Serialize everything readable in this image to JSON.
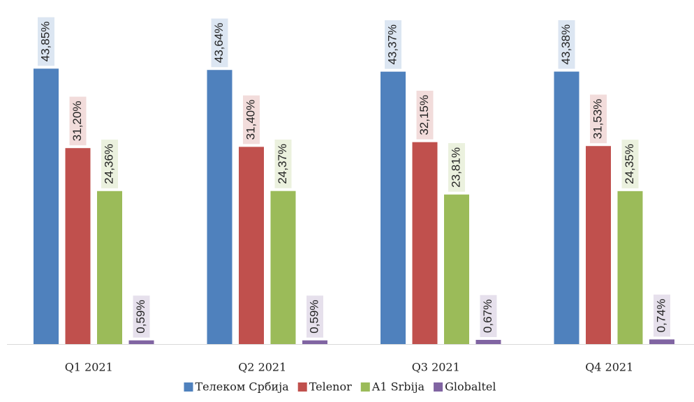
{
  "chart_data": {
    "type": "bar",
    "categories": [
      "Q1 2021",
      "Q2 2021",
      "Q3 2021",
      "Q4 2021"
    ],
    "series": [
      {
        "name": "Телеком Србија",
        "color": "#4f81bd",
        "values": [
          43.85,
          43.64,
          43.37,
          43.38
        ],
        "value_labels": [
          "43,85%",
          "43,64%",
          "43,37%",
          "43,38%"
        ]
      },
      {
        "name": "Telenor",
        "color": "#c0504d",
        "values": [
          31.2,
          31.4,
          32.15,
          31.53
        ],
        "value_labels": [
          "31,20%",
          "31,40%",
          "32,15%",
          "31,53%"
        ]
      },
      {
        "name": "A1 Srbija",
        "color": "#9bbb59",
        "values": [
          24.36,
          24.37,
          23.81,
          24.35
        ],
        "value_labels": [
          "24,36%",
          "24,37%",
          "23,81%",
          "24,35%"
        ]
      },
      {
        "name": "Globaltel",
        "color": "#8064a2",
        "values": [
          0.59,
          0.59,
          0.67,
          0.74
        ],
        "value_labels": [
          "0,59%",
          "0,59%",
          "0,67%",
          "0,74%"
        ]
      }
    ],
    "legend": "bottom"
  }
}
